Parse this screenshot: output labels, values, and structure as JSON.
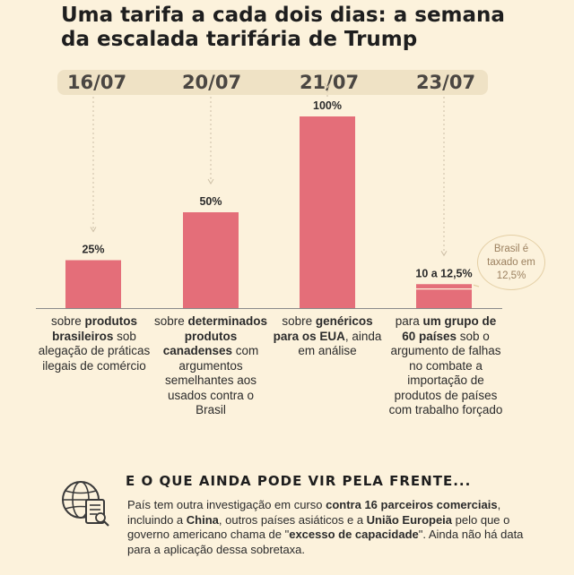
{
  "title_line1": "Uma tarifa a cada dois dias: a semana",
  "title_line2": "da escalada tarifária de Trump",
  "colors": {
    "bar": "#e46e79",
    "background": "#fcf2dc",
    "date_band": "#efe2c5",
    "callout": "#e4cfa5"
  },
  "chart_data": {
    "type": "bar",
    "categories": [
      "16/07",
      "20/07",
      "21/07",
      "23/07"
    ],
    "values": [
      25,
      50,
      100,
      12.5
    ],
    "data_labels": [
      "25%",
      "50%",
      "100%",
      "10 a 12,5%"
    ],
    "ylim": [
      0,
      100
    ],
    "grid": false,
    "legend": "none"
  },
  "descriptions": [
    [
      {
        "t": "sobre ",
        "b": false
      },
      {
        "t": "produtos brasileiros",
        "b": true
      },
      {
        "t": " sob alegação de práticas ilegais de comércio",
        "b": false
      }
    ],
    [
      {
        "t": "sobre ",
        "b": false
      },
      {
        "t": "determinados produtos canadenses",
        "b": true
      },
      {
        "t": " com argumentos semelhantes aos usados contra o Brasil",
        "b": false
      }
    ],
    [
      {
        "t": "sobre ",
        "b": false
      },
      {
        "t": "genéricos para os EUA",
        "b": true
      },
      {
        "t": ", ainda em análise",
        "b": false
      }
    ],
    [
      {
        "t": "para ",
        "b": false
      },
      {
        "t": "um grupo de 60 países",
        "b": true
      },
      {
        "t": " sob o argumento de falhas no combate a importação de produtos de países com trabalho forçado",
        "b": false
      }
    ]
  ],
  "callout": {
    "line1": "Brasil é",
    "line2": "taxado em",
    "line3": "12,5%"
  },
  "section": {
    "title": "E O QUE AINDA PODE VIR PELA FRENTE...",
    "icon": "globe-document-icon",
    "text": [
      {
        "t": "País tem outra investigação em curso ",
        "b": false
      },
      {
        "t": "contra 16 parceiros comerciais",
        "b": true
      },
      {
        "t": ", incluindo a ",
        "b": false
      },
      {
        "t": "China",
        "b": true
      },
      {
        "t": ", outros países asiáticos e a ",
        "b": false
      },
      {
        "t": "União Europeia",
        "b": true
      },
      {
        "t": " pelo que o governo americano chama de \"",
        "b": false
      },
      {
        "t": "excesso de capacidade",
        "b": true
      },
      {
        "t": "\". Ainda não há data para a aplicação dessa sobretaxa.",
        "b": false
      }
    ]
  }
}
